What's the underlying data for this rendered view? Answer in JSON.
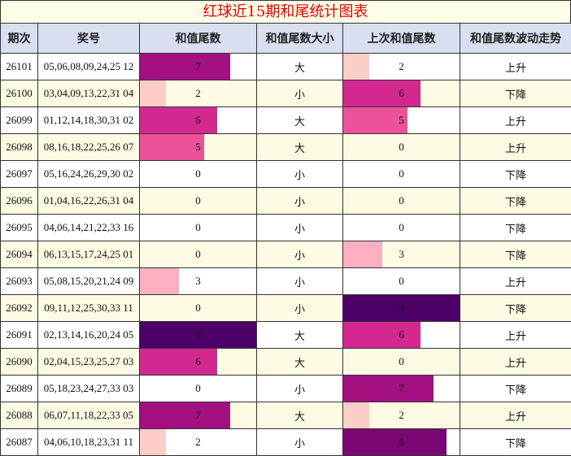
{
  "title": "红球近15期和尾统计图表",
  "headers": {
    "period": "期次",
    "numbers": "奖号",
    "sum_tail": "和值尾数",
    "size": "和值尾数大小",
    "prev_tail": "上次和值尾数",
    "trend": "和值尾数波动走势"
  },
  "tail_colors": {
    "0": "#ffffff",
    "1": "#fde2e0",
    "2": "#fdcdc8",
    "3": "#fbafc1",
    "4": "#f693b6",
    "5": "#ec5199",
    "6": "#d2288f",
    "7": "#a3107f",
    "8": "#7b0774",
    "9": "#4d0067"
  },
  "chart_data": {
    "type": "table",
    "max_value": 9,
    "rows": [
      {
        "period": "26101",
        "numbers": "05,06,08,09,24,25 12",
        "sum_tail": 7,
        "size": "大",
        "prev_tail": 2,
        "trend": "上升"
      },
      {
        "period": "26100",
        "numbers": "03,04,09,13,22,31 04",
        "sum_tail": 2,
        "size": "小",
        "prev_tail": 6,
        "trend": "下降"
      },
      {
        "period": "26099",
        "numbers": "01,12,14,18,30,31 02",
        "sum_tail": 6,
        "size": "大",
        "prev_tail": 5,
        "trend": "上升"
      },
      {
        "period": "26098",
        "numbers": "08,16,18,22,25,26 07",
        "sum_tail": 5,
        "size": "大",
        "prev_tail": 0,
        "trend": "上升"
      },
      {
        "period": "26097",
        "numbers": "05,16,24,26,29,30 02",
        "sum_tail": 0,
        "size": "小",
        "prev_tail": 0,
        "trend": "下降"
      },
      {
        "period": "26096",
        "numbers": "01,04,16,22,26,31 04",
        "sum_tail": 0,
        "size": "小",
        "prev_tail": 0,
        "trend": "下降"
      },
      {
        "period": "26095",
        "numbers": "04,06,14,21,22,33 16",
        "sum_tail": 0,
        "size": "小",
        "prev_tail": 0,
        "trend": "下降"
      },
      {
        "period": "26094",
        "numbers": "06,13,15,17,24,25 01",
        "sum_tail": 0,
        "size": "小",
        "prev_tail": 3,
        "trend": "下降"
      },
      {
        "period": "26093",
        "numbers": "05,08,15,20,21,24 09",
        "sum_tail": 3,
        "size": "小",
        "prev_tail": 0,
        "trend": "上升"
      },
      {
        "period": "26092",
        "numbers": "09,11,12,25,30,33 11",
        "sum_tail": 0,
        "size": "小",
        "prev_tail": 9,
        "trend": "下降"
      },
      {
        "period": "26091",
        "numbers": "02,13,14,16,20,24 05",
        "sum_tail": 9,
        "size": "大",
        "prev_tail": 6,
        "trend": "上升"
      },
      {
        "period": "26090",
        "numbers": "02,04,15,23,25,27 03",
        "sum_tail": 6,
        "size": "大",
        "prev_tail": 0,
        "trend": "上升"
      },
      {
        "period": "26089",
        "numbers": "05,18,23,24,27,33 03",
        "sum_tail": 0,
        "size": "小",
        "prev_tail": 7,
        "trend": "下降"
      },
      {
        "period": "26088",
        "numbers": "06,07,11,18,22,33 05",
        "sum_tail": 7,
        "size": "大",
        "prev_tail": 2,
        "trend": "上升"
      },
      {
        "period": "26087",
        "numbers": "04,06,10,18,23,31 11",
        "sum_tail": 2,
        "size": "小",
        "prev_tail": 8,
        "trend": "下降"
      }
    ]
  }
}
